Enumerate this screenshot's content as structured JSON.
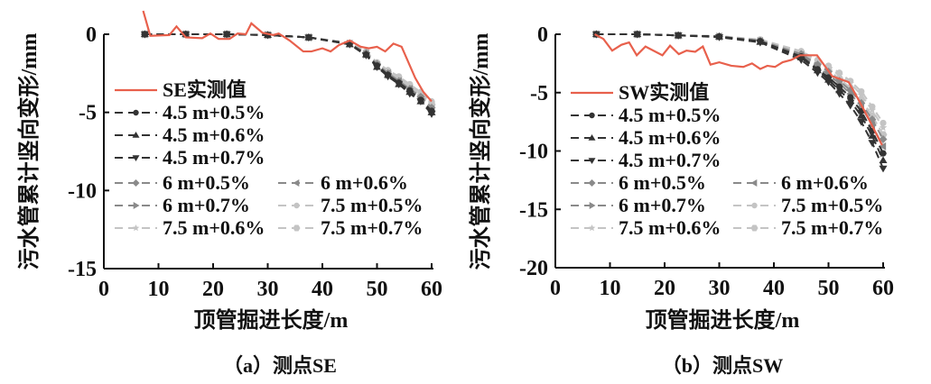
{
  "colors": {
    "measured": "#e8604c",
    "sim_dark": "#333333",
    "sim_mid": "#8a8a8a",
    "sim_light": "#c4c4c4"
  },
  "chart_data": [
    {
      "type": "line",
      "caption": "（a）测点SE",
      "xlabel": "顶管掘进长度/m",
      "ylabel": "污水管累计竖向变形/mm",
      "xlim": [
        0,
        60
      ],
      "ylim": [
        -15,
        0
      ],
      "xticks": [
        "0",
        "10",
        "20",
        "30",
        "40",
        "50",
        "60"
      ],
      "yticks": [
        "0",
        "-5",
        "-10",
        "-15"
      ],
      "grid": false,
      "legend_placement": "center-left",
      "measured": {
        "name": "SE实测值",
        "x": [
          7.2,
          8.5,
          12,
          13.3,
          15,
          18,
          19.5,
          21,
          23,
          24.5,
          26,
          27,
          29,
          31,
          32,
          34,
          36.5,
          38,
          40,
          41.5,
          43,
          45,
          47,
          48.5,
          50,
          51.5,
          53,
          54.5,
          57,
          58.5,
          60
        ],
        "y": [
          1.5,
          -0.1,
          -0.05,
          0.5,
          -0.2,
          -0.25,
          0.05,
          -0.3,
          -0.3,
          0.05,
          0,
          0.7,
          0.1,
          -0.05,
          0.05,
          -0.4,
          -1.1,
          -1.1,
          -0.9,
          -1.1,
          -0.7,
          -0.4,
          -0.8,
          -0.9,
          -0.8,
          -1.1,
          -0.6,
          -0.8,
          -2.8,
          -3.7,
          -4.3
        ]
      },
      "sim_x": [
        7.5,
        15,
        22.5,
        30,
        37.5,
        45,
        48,
        50,
        52,
        54,
        56,
        58,
        60
      ],
      "series": [
        {
          "name": "4.5 m+0.5%",
          "marker": "circle",
          "tone": "dark",
          "values": [
            0,
            0,
            0,
            -0.05,
            -0.2,
            -0.6,
            -1.3,
            -2.0,
            -2.6,
            -3.1,
            -3.6,
            -4.2,
            -4.9
          ]
        },
        {
          "name": "4.5 m+0.6%",
          "marker": "triangle-up",
          "tone": "dark",
          "values": [
            0,
            0,
            0,
            -0.05,
            -0.2,
            -0.65,
            -1.3,
            -2.1,
            -2.6,
            -3.2,
            -3.7,
            -4.3,
            -5.0
          ]
        },
        {
          "name": "4.5 m+0.7%",
          "marker": "triangle-down",
          "tone": "dark",
          "values": [
            0,
            0,
            0,
            -0.05,
            -0.2,
            -0.65,
            -1.35,
            -2.1,
            -2.7,
            -3.2,
            -3.8,
            -4.3,
            -5.1
          ]
        },
        {
          "name": "6 m+0.5%",
          "marker": "diamond",
          "tone": "mid",
          "values": [
            0,
            0,
            0,
            -0.05,
            -0.2,
            -0.6,
            -1.2,
            -1.9,
            -2.5,
            -3.0,
            -3.5,
            -4.0,
            -4.7
          ]
        },
        {
          "name": "6 m+0.6%",
          "marker": "triangle-left",
          "tone": "mid",
          "values": [
            0,
            0,
            0,
            -0.05,
            -0.2,
            -0.6,
            -1.25,
            -2.0,
            -2.5,
            -3.0,
            -3.5,
            -4.1,
            -4.8
          ]
        },
        {
          "name": "6 m+0.7%",
          "marker": "triangle-right",
          "tone": "mid",
          "values": [
            0,
            0,
            0,
            -0.05,
            -0.2,
            -0.6,
            -1.3,
            -2.0,
            -2.6,
            -3.1,
            -3.6,
            -4.2,
            -4.9
          ]
        },
        {
          "name": "7.5 m+0.5%",
          "marker": "circle",
          "tone": "light",
          "values": [
            0,
            0,
            0,
            -0.05,
            -0.2,
            -0.55,
            -1.1,
            -1.8,
            -2.3,
            -2.7,
            -3.2,
            -3.7,
            -4.3
          ]
        },
        {
          "name": "7.5 m+0.6%",
          "marker": "star",
          "tone": "light",
          "values": [
            0,
            0,
            0,
            -0.05,
            -0.2,
            -0.55,
            -1.15,
            -1.85,
            -2.35,
            -2.8,
            -3.3,
            -3.8,
            -4.4
          ]
        },
        {
          "name": "7.5 m+0.7%",
          "marker": "hexagon",
          "tone": "light",
          "values": [
            0,
            0,
            0,
            -0.05,
            -0.2,
            -0.6,
            -1.2,
            -1.9,
            -2.4,
            -2.9,
            -3.4,
            -3.9,
            -4.5
          ]
        }
      ]
    },
    {
      "type": "line",
      "caption": "（b）测点SW",
      "xlabel": "顶管掘进长度/m",
      "ylabel": "污水管累计竖向变形/mm",
      "xlim": [
        0,
        60
      ],
      "ylim": [
        -20,
        0
      ],
      "xticks": [
        "0",
        "10",
        "20",
        "30",
        "40",
        "50",
        "60"
      ],
      "yticks": [
        "0",
        "-5",
        "-10",
        "-15",
        "-20"
      ],
      "grid": false,
      "legend_placement": "center-left",
      "measured": {
        "name": "SW实测值",
        "x": [
          7.2,
          8.8,
          10.4,
          12.1,
          13.5,
          14.9,
          16.5,
          19.6,
          21,
          22.6,
          24,
          25.6,
          27,
          28.4,
          30,
          32.2,
          34.4,
          36,
          37.5,
          38.8,
          40.2,
          41.6,
          43.2,
          44.8,
          47.9,
          50.7,
          53.7,
          55.6,
          57.3,
          59.8
        ],
        "y": [
          0,
          -0.4,
          -1.4,
          -0.9,
          -0.7,
          -1.8,
          -1.05,
          -1.8,
          -0.98,
          -1.7,
          -1.4,
          -1.5,
          -1.05,
          -2.6,
          -2.4,
          -2.7,
          -2.8,
          -2.5,
          -2.97,
          -2.7,
          -2.8,
          -2.4,
          -2.2,
          -1.8,
          -1.8,
          -3.6,
          -4.1,
          -5.7,
          -7.2,
          -9.5
        ]
      },
      "sim_x": [
        7.5,
        15,
        22.5,
        30,
        37.5,
        45,
        48,
        50,
        52,
        54,
        56,
        58,
        60
      ],
      "series": [
        {
          "name": "4.5 m+0.5%",
          "marker": "circle",
          "tone": "dark",
          "values": [
            0,
            0,
            -0.1,
            -0.2,
            -0.6,
            -1.9,
            -3.0,
            -3.7,
            -4.5,
            -5.4,
            -6.6,
            -8.3,
            -10.2
          ]
        },
        {
          "name": "4.5 m+0.6%",
          "marker": "triangle-up",
          "tone": "dark",
          "values": [
            0,
            0,
            -0.1,
            -0.2,
            -0.65,
            -2.0,
            -3.1,
            -3.9,
            -4.8,
            -5.7,
            -7.0,
            -8.7,
            -10.8
          ]
        },
        {
          "name": "4.5 m+0.7%",
          "marker": "triangle-down",
          "tone": "dark",
          "values": [
            0,
            0,
            -0.1,
            -0.25,
            -0.7,
            -2.2,
            -3.3,
            -4.1,
            -5.1,
            -6.1,
            -7.5,
            -9.3,
            -11.5
          ]
        },
        {
          "name": "6 m+0.5%",
          "marker": "diamond",
          "tone": "mid",
          "values": [
            0,
            0,
            -0.1,
            -0.2,
            -0.55,
            -1.7,
            -2.6,
            -3.2,
            -4.0,
            -4.8,
            -5.9,
            -7.3,
            -9.0
          ]
        },
        {
          "name": "6 m+0.6%",
          "marker": "triangle-left",
          "tone": "mid",
          "values": [
            0,
            0,
            -0.1,
            -0.2,
            -0.6,
            -1.8,
            -2.8,
            -3.5,
            -4.2,
            -5.1,
            -6.2,
            -7.8,
            -9.6
          ]
        },
        {
          "name": "6 m+0.7%",
          "marker": "triangle-right",
          "tone": "mid",
          "values": [
            0,
            0,
            -0.1,
            -0.2,
            -0.6,
            -1.9,
            -3.0,
            -3.7,
            -4.5,
            -5.4,
            -6.6,
            -8.3,
            -10.2
          ]
        },
        {
          "name": "7.5 m+0.5%",
          "marker": "circle",
          "tone": "light",
          "values": [
            0,
            0,
            -0.1,
            -0.15,
            -0.45,
            -1.45,
            -2.2,
            -2.7,
            -3.3,
            -4.0,
            -4.9,
            -6.2,
            -7.6
          ]
        },
        {
          "name": "7.5 m+0.6%",
          "marker": "star",
          "tone": "light",
          "values": [
            0,
            0,
            -0.1,
            -0.15,
            -0.5,
            -1.5,
            -2.3,
            -2.9,
            -3.5,
            -4.2,
            -5.2,
            -6.5,
            -8.0
          ]
        },
        {
          "name": "7.5 m+0.7%",
          "marker": "hexagon",
          "tone": "light",
          "values": [
            0,
            0,
            -0.1,
            -0.2,
            -0.5,
            -1.6,
            -2.5,
            -3.1,
            -3.8,
            -4.6,
            -5.6,
            -7.0,
            -8.6
          ]
        }
      ]
    }
  ]
}
